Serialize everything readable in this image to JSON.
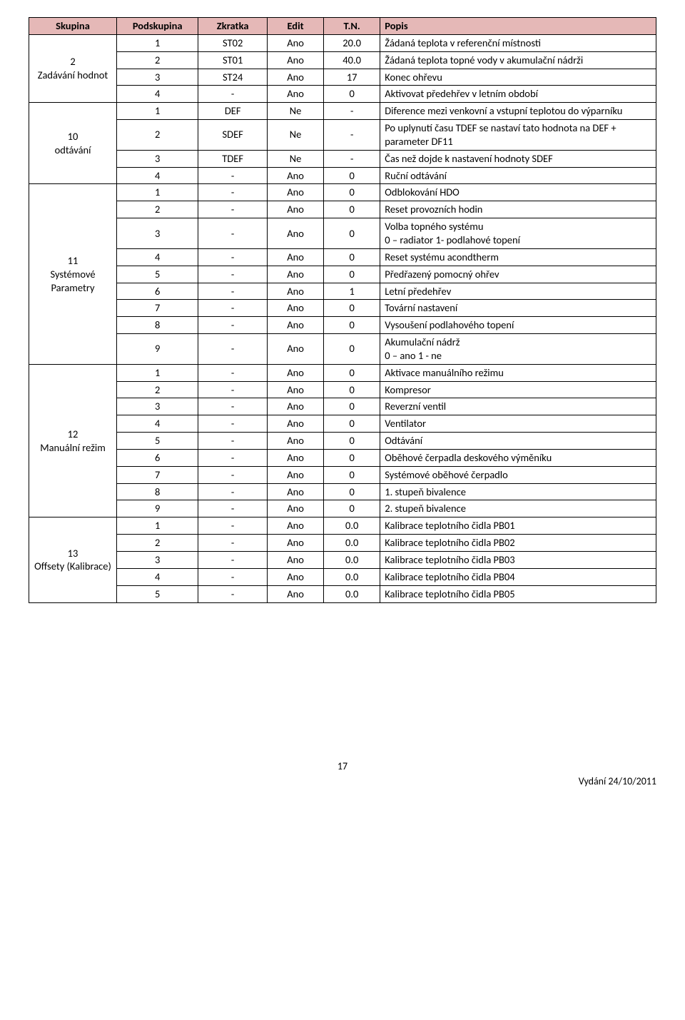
{
  "colors": {
    "header_bg": "#e5b8b7",
    "border": "#000000",
    "text": "#000000",
    "page_bg": "#ffffff"
  },
  "typography": {
    "font_family": "Calibri",
    "font_size_pt": 11,
    "header_weight": "bold"
  },
  "header": [
    "Skupina",
    "Podskupina",
    "Zkratka",
    "Edit",
    "T.N.",
    "Popis"
  ],
  "groups": [
    {
      "label": "2\nZadávání hodnot",
      "rows": [
        {
          "ps": "1",
          "zk": "ST02",
          "ed": "Ano",
          "tn": "20.0",
          "po": "Žádaná teplota v referenční místnosti"
        },
        {
          "ps": "2",
          "zk": "ST01",
          "ed": "Ano",
          "tn": "40.0",
          "po": "Žádaná teplota topné vody v akumulační nádrži"
        },
        {
          "ps": "3",
          "zk": "ST24",
          "ed": "Ano",
          "tn": "17",
          "po": "Konec ohřevu"
        },
        {
          "ps": "4",
          "zk": "-",
          "ed": "Ano",
          "tn": "0",
          "po": "Aktivovat předehřev v letním období"
        }
      ]
    },
    {
      "label": "10\nodtávání",
      "rows": [
        {
          "ps": "1",
          "zk": "DEF",
          "ed": "Ne",
          "tn": "-",
          "po": "Diference mezi venkovní a vstupní teplotou do výparníku"
        },
        {
          "ps": "2",
          "zk": "SDEF",
          "ed": "Ne",
          "tn": "-",
          "po": "Po uplynutí času TDEF se nastaví tato hodnota na DEF + parameter DF11"
        },
        {
          "ps": "3",
          "zk": "TDEF",
          "ed": "Ne",
          "tn": "-",
          "po": "Čas než dojde k nastavení hodnoty SDEF"
        },
        {
          "ps": "4",
          "zk": "-",
          "ed": "Ano",
          "tn": "0",
          "po": "Ruční odtávání"
        }
      ]
    },
    {
      "label": "11\nSystémové Parametry",
      "rows": [
        {
          "ps": "1",
          "zk": "-",
          "ed": "Ano",
          "tn": "0",
          "po": "Odblokování HDO"
        },
        {
          "ps": "2",
          "zk": "-",
          "ed": "Ano",
          "tn": "0",
          "po": "Reset provozních hodin"
        },
        {
          "ps": "3",
          "zk": "-",
          "ed": "Ano",
          "tn": "0",
          "po": "Volba topného systému\n0 – radiator 1- podlahové topení"
        },
        {
          "ps": "4",
          "zk": "-",
          "ed": "Ano",
          "tn": "0",
          "po": "Reset systému acondtherm"
        },
        {
          "ps": "5",
          "zk": "-",
          "ed": "Ano",
          "tn": "0",
          "po": "Předřazený pomocný ohřev"
        },
        {
          "ps": "6",
          "zk": "-",
          "ed": "Ano",
          "tn": "1",
          "po": "Letní předehřev"
        },
        {
          "ps": "7",
          "zk": "-",
          "ed": "Ano",
          "tn": "0",
          "po": "Tovární nastavení"
        },
        {
          "ps": "8",
          "zk": "-",
          "ed": "Ano",
          "tn": "0",
          "po": "Vysoušení podlahového topení"
        },
        {
          "ps": "9",
          "zk": "-",
          "ed": "Ano",
          "tn": "0",
          "po": "Akumulační nádrž\n0 – ano 1 - ne"
        }
      ]
    },
    {
      "label": "12\nManuální režim",
      "rows": [
        {
          "ps": "1",
          "zk": "-",
          "ed": "Ano",
          "tn": "0",
          "po": "Aktivace manuálního režimu"
        },
        {
          "ps": "2",
          "zk": "-",
          "ed": "Ano",
          "tn": "0",
          "po": "Kompresor"
        },
        {
          "ps": "3",
          "zk": "-",
          "ed": "Ano",
          "tn": "0",
          "po": "Reverzní ventil"
        },
        {
          "ps": "4",
          "zk": "-",
          "ed": "Ano",
          "tn": "0",
          "po": "Ventilator"
        },
        {
          "ps": "5",
          "zk": "-",
          "ed": "Ano",
          "tn": "0",
          "po": "Odtávání"
        },
        {
          "ps": "6",
          "zk": "-",
          "ed": "Ano",
          "tn": "0",
          "po": "Oběhové čerpadla deskového výměníku"
        },
        {
          "ps": "7",
          "zk": "-",
          "ed": "Ano",
          "tn": "0",
          "po": "Systémové oběhové čerpadlo"
        },
        {
          "ps": "8",
          "zk": "-",
          "ed": "Ano",
          "tn": "0",
          "po": "1. stupeň bivalence"
        },
        {
          "ps": "9",
          "zk": "-",
          "ed": "Ano",
          "tn": "0",
          "po": "2. stupeň bivalence"
        }
      ]
    },
    {
      "label": "13\nOffsety (Kalibrace)",
      "rows": [
        {
          "ps": "1",
          "zk": "-",
          "ed": "Ano",
          "tn": "0.0",
          "po": "Kalibrace teplotního čidla PB01"
        },
        {
          "ps": "2",
          "zk": "-",
          "ed": "Ano",
          "tn": "0.0",
          "po": "Kalibrace teplotního čidla PB02"
        },
        {
          "ps": "3",
          "zk": "-",
          "ed": "Ano",
          "tn": "0.0",
          "po": "Kalibrace teplotního čidla PB03"
        },
        {
          "ps": "4",
          "zk": "-",
          "ed": "Ano",
          "tn": "0.0",
          "po": "Kalibrace teplotního čidla PB04"
        },
        {
          "ps": "5",
          "zk": "-",
          "ed": "Ano",
          "tn": "0.0",
          "po": "Kalibrace teplotního čidla PB05"
        }
      ]
    }
  ],
  "footer": {
    "page": "17",
    "date": "Vydání 24/10/2011"
  }
}
